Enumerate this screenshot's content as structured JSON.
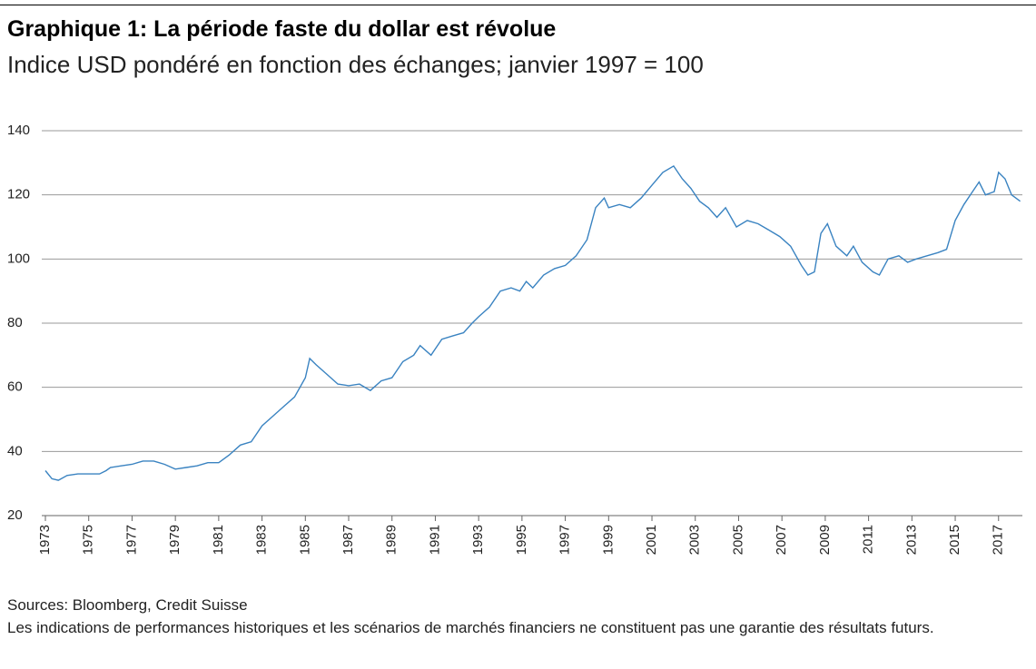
{
  "chart_data": {
    "type": "line",
    "title": "Graphique 1: La période faste du dollar est révolue",
    "subtitle": "Indice USD pondéré en fonction des échanges; janvier 1997 = 100",
    "source": "Sources: Bloomberg, Credit Suisse",
    "note": "Les indications de performances historiques et les scénarios de marchés financiers ne constituent pas une garantie des résultats futurs.",
    "x": [
      1973.0,
      1973.3,
      1973.6,
      1974.0,
      1974.5,
      1975.0,
      1975.5,
      1975.8,
      1976.0,
      1976.5,
      1977.0,
      1977.5,
      1978.0,
      1978.5,
      1979.0,
      1979.5,
      1980.0,
      1980.5,
      1981.0,
      1981.5,
      1982.0,
      1982.5,
      1983.0,
      1983.5,
      1984.0,
      1984.5,
      1985.0,
      1985.2,
      1985.5,
      1986.0,
      1986.5,
      1987.0,
      1987.5,
      1988.0,
      1988.5,
      1989.0,
      1989.5,
      1990.0,
      1990.3,
      1990.8,
      1991.3,
      1991.8,
      1992.3,
      1992.7,
      1993.0,
      1993.5,
      1994.0,
      1994.5,
      1994.9,
      1995.2,
      1995.5,
      1996.0,
      1996.5,
      1997.0,
      1997.5,
      1998.0,
      1998.4,
      1998.8,
      1999.0,
      1999.5,
      2000.0,
      2000.5,
      2001.0,
      2001.5,
      2002.0,
      2002.4,
      2002.8,
      2003.2,
      2003.6,
      2004.0,
      2004.4,
      2004.9,
      2005.4,
      2005.9,
      2006.4,
      2006.9,
      2007.4,
      2007.9,
      2008.2,
      2008.5,
      2008.8,
      2009.1,
      2009.5,
      2010.0,
      2010.3,
      2010.7,
      2011.2,
      2011.5,
      2011.9,
      2012.4,
      2012.8,
      2013.2,
      2013.7,
      2014.2,
      2014.6,
      2015.0,
      2015.4,
      2015.8,
      2016.1,
      2016.4,
      2016.8,
      2017.0,
      2017.3,
      2017.6,
      2018.0
    ],
    "series": [
      {
        "name": "Indice USD",
        "color": "#3a83c1",
        "values": [
          34,
          31.5,
          31,
          32.5,
          33,
          33,
          33,
          34,
          35,
          35.5,
          36,
          37,
          37,
          36,
          34.5,
          35,
          35.5,
          36.5,
          36.5,
          39,
          42,
          43,
          48,
          51,
          54,
          57,
          63,
          69,
          67,
          64,
          61,
          60.5,
          61,
          59,
          62,
          63,
          68,
          70,
          73,
          70,
          75,
          76,
          77,
          80,
          82,
          85,
          90,
          91,
          90,
          93,
          91,
          95,
          97,
          98,
          101,
          106,
          116,
          119,
          116,
          117,
          116,
          119,
          123,
          127,
          129,
          125,
          122,
          118,
          116,
          113,
          116,
          110,
          112,
          111,
          109,
          107,
          104,
          98,
          95,
          96,
          108,
          111,
          104,
          101,
          104,
          99,
          96,
          95,
          100,
          101,
          99,
          100,
          101,
          102,
          103,
          112,
          117,
          121,
          124,
          120,
          121,
          127,
          125,
          120,
          118
        ]
      }
    ],
    "xlim": [
      1973,
      2018.1
    ],
    "xticks": [
      1973,
      1975,
      1977,
      1979,
      1981,
      1983,
      1985,
      1987,
      1989,
      1991,
      1993,
      1995,
      1997,
      1999,
      2001,
      2003,
      2005,
      2007,
      2009,
      2011,
      2013,
      2015,
      2017
    ],
    "ylim": [
      20,
      140
    ],
    "yticks": [
      20,
      40,
      60,
      80,
      100,
      120,
      140
    ],
    "grid": true
  }
}
